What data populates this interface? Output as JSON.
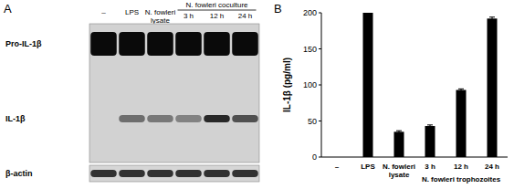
{
  "blot": {
    "panel_label": "A",
    "group_header": "N. fowleri coculture",
    "lanes": [
      "–",
      "LPS",
      "N. fowleri lysate",
      "3 h",
      "12 h",
      "24 h"
    ],
    "rows": [
      {
        "label": "Pro-IL-1β",
        "intensity": [
          1,
          1,
          1,
          1,
          1,
          1
        ]
      },
      {
        "label": "IL-1β",
        "intensity": [
          0,
          0.5,
          0.45,
          0.4,
          0.85,
          0.65
        ]
      },
      {
        "label": "β-actin",
        "intensity": [
          0.8,
          0.8,
          0.8,
          0.8,
          0.8,
          0.8
        ]
      }
    ]
  },
  "chart_data": {
    "type": "bar",
    "panel_label": "B",
    "y_label": "IL-1β (pg/ml)",
    "categories": [
      "–",
      "LPS",
      "N. fowleri lysate",
      "3 h",
      "12 h",
      "24 h"
    ],
    "values": [
      0,
      200,
      35,
      43,
      93,
      192
    ],
    "errors": [
      0,
      0,
      1.5,
      1.5,
      1.5,
      2
    ],
    "annotations": [
      {
        "text": "N. fowleri trophozoites"
      }
    ],
    "color": "#000000",
    "ylim": [
      0,
      200
    ],
    "yticks": [
      0,
      50,
      100,
      150,
      200
    ],
    "grid": false
  }
}
